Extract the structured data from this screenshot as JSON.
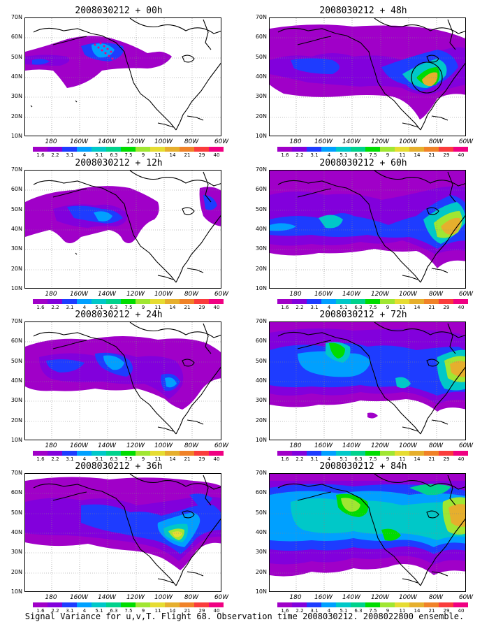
{
  "caption": "Signal Variance for u,v,T. Flight 68. Observation time 2008030212. 2008022800 ensemble.",
  "latitude_labels": [
    "70N",
    "60N",
    "50N",
    "40N",
    "30N",
    "20N",
    "10N"
  ],
  "longitude_labels": [
    "180",
    "160W",
    "140W",
    "120W",
    "100W",
    "80W",
    "60W"
  ],
  "colorbar": {
    "labels": [
      "1.6",
      "2.2",
      "3.1",
      "4",
      "5.1",
      "6.3",
      "7.5",
      "9",
      "11",
      "14",
      "21",
      "29",
      "40"
    ],
    "colors": [
      "#a000c8",
      "#8200dc",
      "#1e3cff",
      "#00a0ff",
      "#00c8c8",
      "#00d28c",
      "#00dc00",
      "#a0e632",
      "#e6dc32",
      "#e6af2d",
      "#f08228",
      "#fa3c3c",
      "#f00082"
    ]
  },
  "panels": [
    {
      "title": "2008030212 + 00h",
      "forecast_hour": 0
    },
    {
      "title": "2008030212 + 48h",
      "forecast_hour": 48
    },
    {
      "title": "2008030212 + 12h",
      "forecast_hour": 12
    },
    {
      "title": "2008030212 + 60h",
      "forecast_hour": 60
    },
    {
      "title": "2008030212 + 24h",
      "forecast_hour": 24
    },
    {
      "title": "2008030212 + 72h",
      "forecast_hour": 72
    },
    {
      "title": "2008030212 + 36h",
      "forecast_hour": 36
    },
    {
      "title": "2008030212 + 84h",
      "forecast_hour": 84
    }
  ]
}
